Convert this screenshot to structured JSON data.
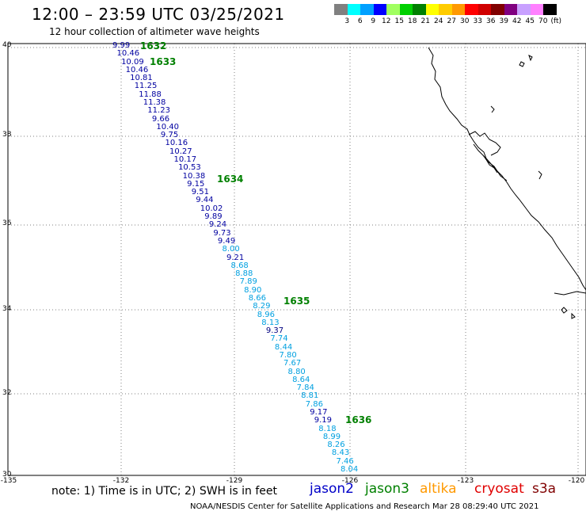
{
  "title": "12:00 – 23:59 UTC 03/25/2021",
  "subtitle": "12 hour collection of altimeter wave heights",
  "legend": {
    "colors": [
      "#808080",
      "#00ffff",
      "#00a0ff",
      "#0000ff",
      "#a0ff60",
      "#00d000",
      "#008000",
      "#ffff00",
      "#ffcc00",
      "#ff9900",
      "#ff0000",
      "#d00000",
      "#800000",
      "#800080",
      "#c8a0ff",
      "#ff80ff",
      "#000000"
    ],
    "labels": [
      "3",
      "6",
      "9",
      "12",
      "15",
      "18",
      "21",
      "24",
      "27",
      "30",
      "33",
      "36",
      "39",
      "42",
      "45",
      "70",
      "(ft)"
    ]
  },
  "lat_labels": [
    "40",
    "38",
    "36",
    "34",
    "32",
    "30"
  ],
  "lon_labels": [
    "-135",
    "-132",
    "-129",
    "-126",
    "-123",
    "-120"
  ],
  "note": "note: 1) Time is in UTC; 2) SWH is in feet",
  "satellites": [
    {
      "name": "jason2",
      "color": "#0000c8"
    },
    {
      "name": "jason3",
      "color": "#008000"
    },
    {
      "name": "altika",
      "color": "#ff9900"
    },
    {
      "name": "cryosat",
      "color": "#e00000"
    },
    {
      "name": "s3a",
      "color": "#800000"
    }
  ],
  "credit": "NOAA/NESDIS Center for Satellite Applications and Research    Mar 28 08:29:40 UTC 2021",
  "pass_labels": [
    "1632",
    "1633",
    "1634",
    "1635",
    "1636"
  ],
  "wave_heights": [
    {
      "v": "9.99",
      "c": "#0000a0"
    },
    {
      "v": "10.46",
      "c": "#0000a0"
    },
    {
      "v": "10.09",
      "c": "#0000a0"
    },
    {
      "v": "10.46",
      "c": "#0000a0"
    },
    {
      "v": "10.81",
      "c": "#0000a0"
    },
    {
      "v": "11.25",
      "c": "#0000a0"
    },
    {
      "v": "11.88",
      "c": "#0000a0"
    },
    {
      "v": "11.38",
      "c": "#0000a0"
    },
    {
      "v": "11.23",
      "c": "#0000a0"
    },
    {
      "v": "9.66",
      "c": "#0000a0"
    },
    {
      "v": "10.40",
      "c": "#0000a0"
    },
    {
      "v": "9.75",
      "c": "#0000a0"
    },
    {
      "v": "10.16",
      "c": "#0000a0"
    },
    {
      "v": "10.27",
      "c": "#0000a0"
    },
    {
      "v": "10.17",
      "c": "#0000a0"
    },
    {
      "v": "10.53",
      "c": "#0000a0"
    },
    {
      "v": "10.38",
      "c": "#0000a0"
    },
    {
      "v": "9.15",
      "c": "#0000a0"
    },
    {
      "v": "9.51",
      "c": "#0000a0"
    },
    {
      "v": "9.44",
      "c": "#0000a0"
    },
    {
      "v": "10.02",
      "c": "#0000a0"
    },
    {
      "v": "9.89",
      "c": "#0000a0"
    },
    {
      "v": "9.24",
      "c": "#0000a0"
    },
    {
      "v": "9.73",
      "c": "#0000a0"
    },
    {
      "v": "9.49",
      "c": "#0000a0"
    },
    {
      "v": "8.00",
      "c": "#00a0e0"
    },
    {
      "v": "9.21",
      "c": "#0000a0"
    },
    {
      "v": "8.68",
      "c": "#00a0e0"
    },
    {
      "v": "8.88",
      "c": "#00a0e0"
    },
    {
      "v": "7.89",
      "c": "#00a0e0"
    },
    {
      "v": "8.90",
      "c": "#00a0e0"
    },
    {
      "v": "8.66",
      "c": "#00a0e0"
    },
    {
      "v": "8.29",
      "c": "#00a0e0"
    },
    {
      "v": "8.96",
      "c": "#00a0e0"
    },
    {
      "v": "8.13",
      "c": "#00a0e0"
    },
    {
      "v": "9.37",
      "c": "#000080"
    },
    {
      "v": "7.74",
      "c": "#00a0e0"
    },
    {
      "v": "8.44",
      "c": "#00a0e0"
    },
    {
      "v": "7.80",
      "c": "#00a0e0"
    },
    {
      "v": "7.67",
      "c": "#00a0e0"
    },
    {
      "v": "8.80",
      "c": "#00a0e0"
    },
    {
      "v": "8.64",
      "c": "#00a0e0"
    },
    {
      "v": "7.84",
      "c": "#00a0e0"
    },
    {
      "v": "8.81",
      "c": "#00a0e0"
    },
    {
      "v": "7.86",
      "c": "#00a0e0"
    },
    {
      "v": "9.17",
      "c": "#0000a0"
    },
    {
      "v": "9.19",
      "c": "#0000a0"
    },
    {
      "v": "8.18",
      "c": "#00a0e0"
    },
    {
      "v": "8.99",
      "c": "#00a0e0"
    },
    {
      "v": "8.26",
      "c": "#00a0e0"
    },
    {
      "v": "8.43",
      "c": "#00a0e0"
    },
    {
      "v": "7.46",
      "c": "#00a0e0"
    },
    {
      "v": "8.04",
      "c": "#00a0e0"
    }
  ]
}
